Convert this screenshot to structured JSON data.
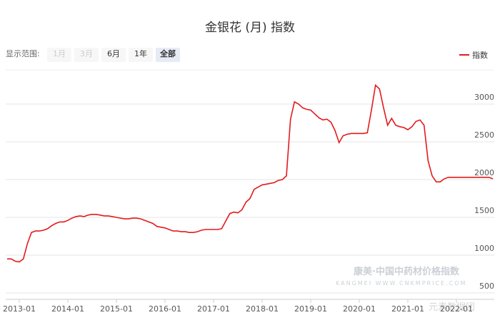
{
  "controls": {
    "label": "显示范围:",
    "options": [
      "1月",
      "3月",
      "6月",
      "1年",
      "全部"
    ],
    "disabled": [
      0,
      1
    ],
    "selected": 4
  },
  "watermark": {
    "brand": "康美·中国中药材价格指数",
    "url": "KANGMEI WWW.CNKMPRICE.COM",
    "social": "元素数据团"
  },
  "chart_data": {
    "type": "line",
    "title": "金银花 (月) 指数",
    "categories": [
      null,
      null,
      null,
      "2013-01",
      null,
      null,
      null,
      null,
      null,
      null,
      null,
      null,
      null,
      null,
      null,
      "2014-01",
      null,
      null,
      null,
      null,
      null,
      null,
      null,
      null,
      null,
      null,
      null,
      "2015-01",
      null,
      null,
      null,
      null,
      null,
      null,
      null,
      null,
      null,
      null,
      null,
      "2016-01",
      null,
      null,
      null,
      null,
      null,
      null,
      null,
      null,
      null,
      null,
      null,
      "2017-01",
      null,
      null,
      null,
      null,
      null,
      null,
      null,
      null,
      null,
      null,
      null,
      "2018-01",
      null,
      null,
      null,
      null,
      null,
      null,
      null,
      null,
      null,
      null,
      null,
      "2019-01",
      null,
      null,
      null,
      null,
      null,
      null,
      null,
      null,
      null,
      null,
      null,
      "2020-01",
      null,
      null,
      null,
      null,
      null,
      null,
      null,
      null,
      null,
      null,
      null,
      "2021-01",
      null,
      null,
      null,
      null,
      null,
      null,
      null,
      null,
      null,
      null,
      null,
      "2022-01",
      null,
      null,
      null,
      null,
      null,
      null,
      null,
      null,
      null
    ],
    "series": [
      {
        "name": "指数",
        "color": "#e31a1c",
        "values": [
          950,
          950,
          920,
          910,
          950,
          1150,
          1300,
          1320,
          1320,
          1330,
          1350,
          1390,
          1420,
          1440,
          1440,
          1460,
          1490,
          1510,
          1520,
          1510,
          1530,
          1540,
          1540,
          1530,
          1520,
          1520,
          1510,
          1500,
          1490,
          1480,
          1480,
          1490,
          1490,
          1480,
          1460,
          1440,
          1420,
          1380,
          1370,
          1360,
          1340,
          1320,
          1320,
          1310,
          1310,
          1300,
          1300,
          1310,
          1330,
          1340,
          1340,
          1340,
          1340,
          1350,
          1450,
          1550,
          1570,
          1560,
          1600,
          1700,
          1750,
          1870,
          1900,
          1930,
          1940,
          1950,
          1960,
          1990,
          2000,
          2050,
          2800,
          3030,
          3000,
          2950,
          2930,
          2920,
          2870,
          2820,
          2790,
          2800,
          2760,
          2650,
          2490,
          2580,
          2600,
          2610,
          2610,
          2610,
          2610,
          2620,
          2920,
          3250,
          3200,
          2950,
          2720,
          2810,
          2720,
          2700,
          2690,
          2660,
          2700,
          2770,
          2790,
          2720,
          2250,
          2050,
          1970,
          1970,
          2010,
          2030,
          2030,
          2030,
          2030,
          2030,
          2030,
          2030,
          2030,
          2030,
          2030,
          2030,
          2010
        ]
      }
    ],
    "ylim": [
      500,
      3500
    ],
    "yticks": [
      500,
      1000,
      1500,
      2000,
      2500,
      3000
    ],
    "grid": true,
    "legend": "top-right"
  }
}
